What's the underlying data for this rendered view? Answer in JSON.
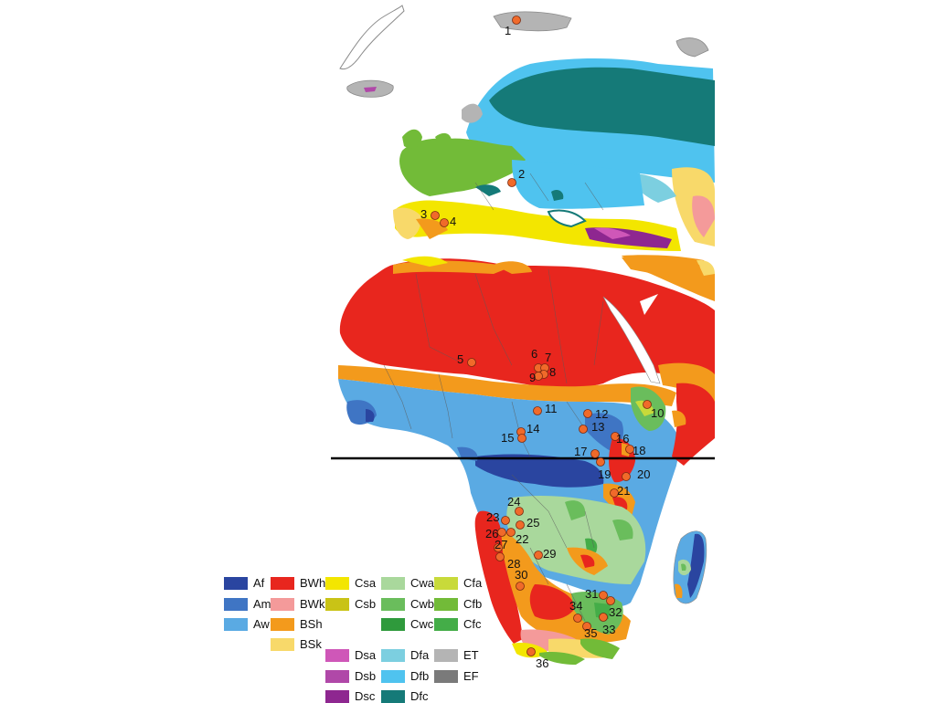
{
  "map": {
    "equator_line": "equator-line",
    "sites": [
      "1",
      "2",
      "3",
      "4",
      "5",
      "6",
      "7",
      "8",
      "9",
      "10",
      "11",
      "12",
      "13",
      "14",
      "15",
      "16",
      "17",
      "18",
      "19",
      "20",
      "21",
      "22",
      "23",
      "24",
      "25",
      "26",
      "27",
      "28",
      "29",
      "30",
      "31",
      "32",
      "33",
      "34",
      "35",
      "36"
    ]
  },
  "legend": {
    "items": [
      {
        "code": "Af",
        "color": "#2a45a0"
      },
      {
        "code": "Am",
        "color": "#3f75c4"
      },
      {
        "code": "Aw",
        "color": "#5aaae3"
      },
      {
        "code": "BWh",
        "color": "#e8261e"
      },
      {
        "code": "BWk",
        "color": "#f49a9a"
      },
      {
        "code": "BSh",
        "color": "#f39a1c"
      },
      {
        "code": "BSk",
        "color": "#f8d96a"
      },
      {
        "code": "Csa",
        "color": "#f3e600"
      },
      {
        "code": "Csb",
        "color": "#c9c316"
      },
      {
        "code": "Cwa",
        "color": "#a9d89c"
      },
      {
        "code": "Cwb",
        "color": "#6abd5c"
      },
      {
        "code": "Cwc",
        "color": "#2f9a3c"
      },
      {
        "code": "Cfa",
        "color": "#c8da3a"
      },
      {
        "code": "Cfb",
        "color": "#72bb38"
      },
      {
        "code": "Cfc",
        "color": "#44ad48"
      },
      {
        "code": "Dsa",
        "color": "#cf57b8"
      },
      {
        "code": "Dsb",
        "color": "#b048a8"
      },
      {
        "code": "Dsc",
        "color": "#8e2790"
      },
      {
        "code": "Dfa",
        "color": "#7ccfe0"
      },
      {
        "code": "Dfb",
        "color": "#4fc3ef"
      },
      {
        "code": "Dfc",
        "color": "#157a78"
      },
      {
        "code": "ET",
        "color": "#b4b4b4"
      },
      {
        "code": "EF",
        "color": "#7a7a7a"
      }
    ]
  }
}
